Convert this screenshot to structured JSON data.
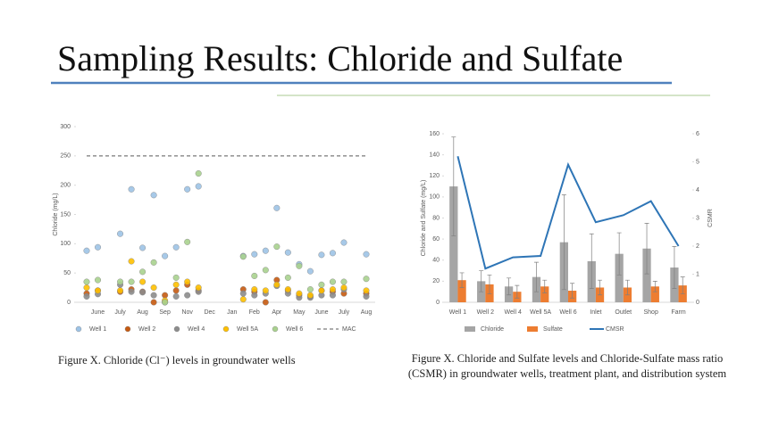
{
  "title": "Sampling Results: Chloride and Sulfate",
  "captions": [
    "Figure X. Chloride (Cl⁻) levels in groundwater wells",
    "Figure X. Chloride and Sulfate levels and Chloride-Sulfate mass ratio (CSMR) in groundwater wells, treatment plant, and distribution system"
  ],
  "chart_data": [
    {
      "type": "scatter",
      "y_label": "Chloride (mg/L)",
      "categories": [
        null,
        "June",
        null,
        "July",
        null,
        "Aug",
        null,
        "Sep",
        null,
        "Nov",
        null,
        "Dec",
        null,
        "Jan",
        null,
        "Feb",
        null,
        "Apr",
        null,
        "May",
        null,
        "June",
        null,
        "July",
        null,
        "Aug"
      ],
      "ylim": [
        0,
        300
      ],
      "yticks": [
        0,
        50,
        100,
        150,
        200,
        250,
        300
      ],
      "series": [
        {
          "name": "Well 1",
          "color": "#9dc3e6",
          "values": [
            88,
            94,
            null,
            117,
            193,
            93,
            183,
            79,
            94,
            193,
            198,
            null,
            null,
            null,
            79,
            82,
            88,
            161,
            85,
            65,
            53,
            81,
            84,
            102,
            null,
            82
          ]
        },
        {
          "name": "Well 2",
          "color": "#c55a11",
          "values": [
            15,
            20,
            null,
            18,
            22,
            18,
            0,
            12,
            20,
            30,
            20,
            null,
            null,
            null,
            22,
            18,
            0,
            38,
            20,
            12,
            10,
            20,
            18,
            15,
            null,
            15
          ]
        },
        {
          "name": "Well 4",
          "color": "#8c8c8c",
          "values": [
            10,
            14,
            null,
            30,
            18,
            17,
            12,
            0,
            10,
            12,
            18,
            null,
            null,
            null,
            15,
            12,
            15,
            28,
            15,
            8,
            8,
            12,
            12,
            22,
            null,
            10
          ]
        },
        {
          "name": "Well 5A",
          "color": "#ffc000",
          "values": [
            25,
            20,
            null,
            20,
            70,
            35,
            25,
            3,
            30,
            35,
            25,
            null,
            null,
            null,
            5,
            22,
            20,
            30,
            22,
            15,
            12,
            20,
            22,
            25,
            null,
            20
          ]
        },
        {
          "name": "Well 6",
          "color": "#a9d18e",
          "values": [
            35,
            38,
            null,
            35,
            35,
            52,
            68,
            0,
            42,
            103,
            220,
            null,
            null,
            null,
            78,
            45,
            55,
            95,
            42,
            62,
            22,
            30,
            35,
            35,
            null,
            40
          ]
        }
      ],
      "mac": {
        "name": "MAC",
        "value": 250,
        "color": "#595959"
      },
      "legend": "bottom"
    },
    {
      "type": "bar",
      "y_label": "Chloride and Sulfate (mg/L)",
      "y2_label": "CSMR",
      "categories": [
        "Well 1",
        "Well 2",
        "Well 4",
        "Well 5A",
        "Well 6",
        "Inlet",
        "Outlet",
        "Shop",
        "Farm"
      ],
      "ylim": [
        0,
        160
      ],
      "yticks": [
        0,
        20,
        40,
        60,
        80,
        100,
        120,
        140,
        160
      ],
      "y2lim": [
        0,
        6
      ],
      "y2ticks": [
        0,
        1,
        2,
        3,
        4,
        5,
        6
      ],
      "series": [
        {
          "name": "Chloride",
          "color": "#a5a5a5",
          "values": [
            110,
            20,
            15,
            24,
            57,
            39,
            46,
            51,
            33
          ],
          "errors": [
            47,
            10,
            8,
            14,
            45,
            26,
            20,
            24,
            20
          ]
        },
        {
          "name": "Sulfate",
          "color": "#ed7d31",
          "values": [
            21,
            17,
            10,
            15,
            11,
            14,
            14,
            15,
            16
          ],
          "errors": [
            7,
            9,
            6,
            6,
            7,
            7,
            7,
            5,
            8
          ]
        },
        {
          "name": "CMSR",
          "color": "#2e75b6",
          "axis": "y2",
          "values": [
            5.2,
            1.2,
            1.6,
            1.65,
            4.9,
            2.85,
            3.1,
            3.6,
            2.0
          ]
        }
      ],
      "legend": "bottom"
    }
  ]
}
